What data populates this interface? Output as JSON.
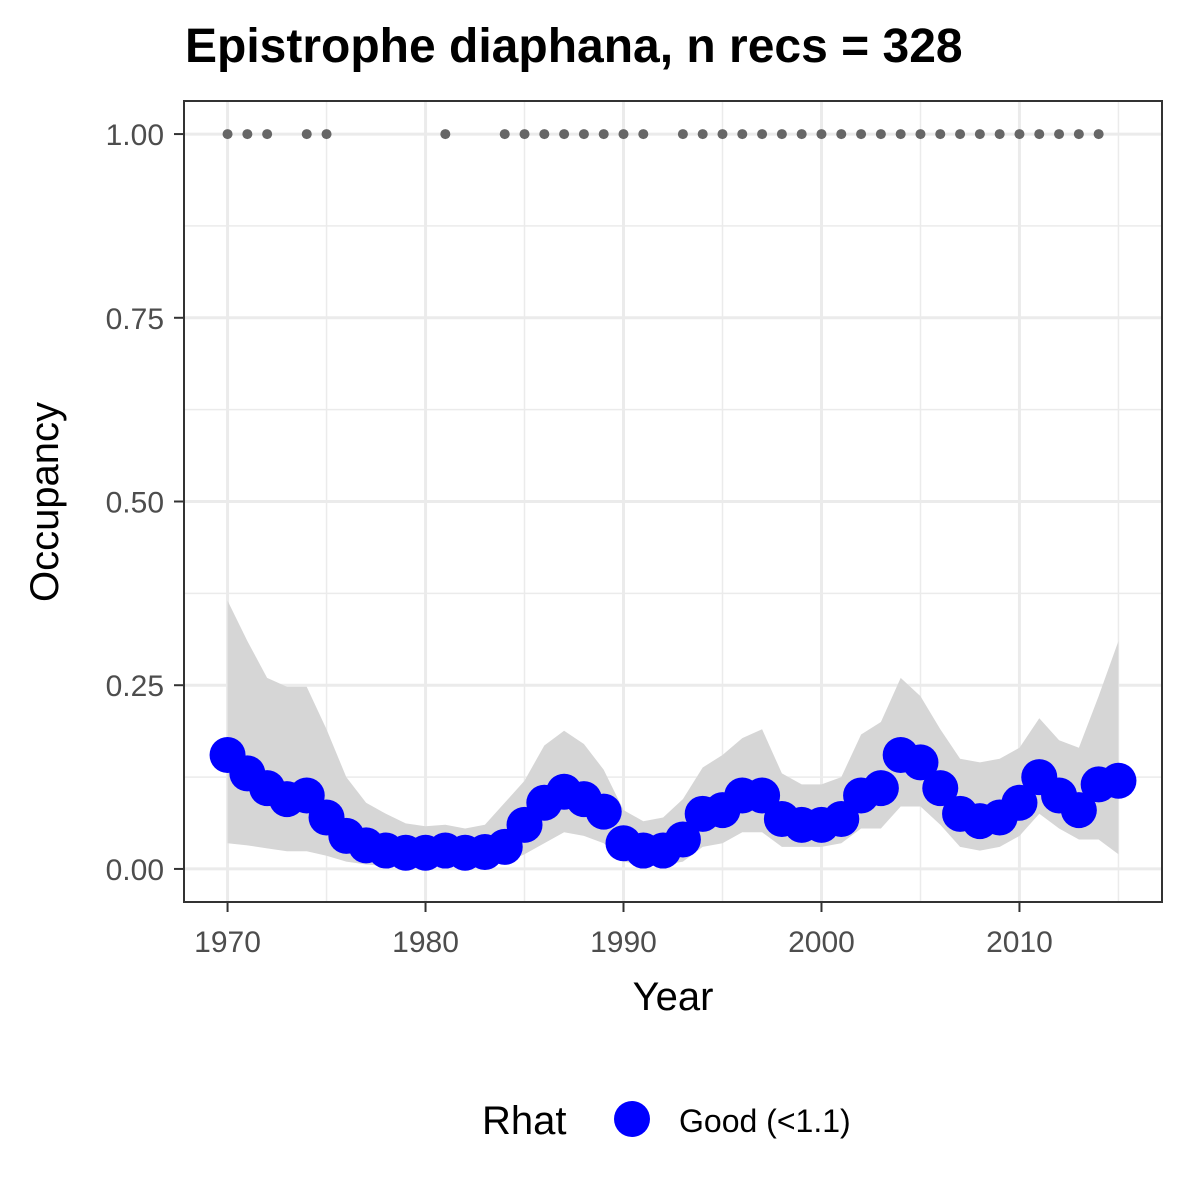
{
  "chart_data": {
    "type": "line",
    "title": "Epistrophe diaphana, n recs = 328",
    "xlabel": "Year",
    "ylabel": "Occupancy",
    "xlim": [
      1967.8,
      2017.2
    ],
    "ylim": [
      -0.045,
      1.045
    ],
    "x_ticks": [
      1970,
      1980,
      1990,
      2000,
      2010
    ],
    "x_tick_labels": [
      "1970",
      "1980",
      "1990",
      "2000",
      "2010"
    ],
    "y_ticks": [
      0,
      0.25,
      0.5,
      0.75,
      1
    ],
    "y_tick_labels": [
      "0.00",
      "0.25",
      "0.50",
      "0.75",
      "1.00"
    ],
    "grid": true,
    "legend": {
      "title": "Rhat",
      "position": "bottom",
      "entries": [
        {
          "label": "Good (<1.1)",
          "color": "#0000ff"
        }
      ]
    },
    "colors": {
      "occupancy": "#0000ff",
      "ribbon": "#d6d6d6",
      "records": "#666666",
      "grid": "#ebebeb",
      "panel_border": "#333333"
    },
    "series": [
      {
        "name": "Good (<1.1)",
        "x": [
          1970,
          1971,
          1972,
          1973,
          1974,
          1975,
          1976,
          1977,
          1978,
          1979,
          1980,
          1981,
          1982,
          1983,
          1984,
          1985,
          1986,
          1987,
          1988,
          1989,
          1990,
          1991,
          1992,
          1993,
          1994,
          1995,
          1996,
          1997,
          1998,
          1999,
          2000,
          2001,
          2002,
          2003,
          2004,
          2005,
          2006,
          2007,
          2008,
          2009,
          2010,
          2011,
          2012,
          2013,
          2014,
          2015
        ],
        "y": [
          0.155,
          0.13,
          0.11,
          0.095,
          0.1,
          0.07,
          0.045,
          0.032,
          0.025,
          0.022,
          0.022,
          0.025,
          0.022,
          0.023,
          0.03,
          0.06,
          0.09,
          0.105,
          0.095,
          0.078,
          0.035,
          0.025,
          0.025,
          0.04,
          0.075,
          0.08,
          0.1,
          0.1,
          0.068,
          0.06,
          0.06,
          0.068,
          0.1,
          0.11,
          0.155,
          0.145,
          0.11,
          0.075,
          0.065,
          0.07,
          0.09,
          0.125,
          0.1,
          0.08,
          0.115,
          0.12
        ],
        "lower": [
          0.035,
          0.032,
          0.028,
          0.024,
          0.024,
          0.018,
          0.01,
          0.006,
          0.004,
          0.004,
          0.004,
          0.004,
          0.004,
          0.005,
          0.008,
          0.02,
          0.035,
          0.05,
          0.045,
          0.035,
          0.01,
          0.005,
          0.005,
          0.01,
          0.03,
          0.035,
          0.05,
          0.05,
          0.03,
          0.03,
          0.03,
          0.035,
          0.055,
          0.055,
          0.085,
          0.085,
          0.06,
          0.03,
          0.025,
          0.03,
          0.045,
          0.075,
          0.055,
          0.04,
          0.04,
          0.02
        ],
        "upper": [
          0.365,
          0.31,
          0.26,
          0.248,
          0.248,
          0.19,
          0.125,
          0.09,
          0.075,
          0.062,
          0.058,
          0.06,
          0.055,
          0.06,
          0.09,
          0.12,
          0.168,
          0.188,
          0.17,
          0.135,
          0.08,
          0.065,
          0.07,
          0.095,
          0.138,
          0.155,
          0.178,
          0.19,
          0.13,
          0.115,
          0.115,
          0.125,
          0.183,
          0.2,
          0.26,
          0.235,
          0.19,
          0.15,
          0.145,
          0.15,
          0.165,
          0.205,
          0.175,
          0.165,
          0.235,
          0.31
        ]
      }
    ],
    "records": {
      "y": 1.0,
      "years": [
        1970,
        1971,
        1972,
        1974,
        1975,
        1981,
        1984,
        1985,
        1986,
        1987,
        1988,
        1989,
        1990,
        1991,
        1993,
        1994,
        1995,
        1996,
        1997,
        1998,
        1999,
        2000,
        2001,
        2002,
        2003,
        2004,
        2005,
        2006,
        2007,
        2008,
        2009,
        2010,
        2011,
        2012,
        2013,
        2014
      ]
    }
  }
}
